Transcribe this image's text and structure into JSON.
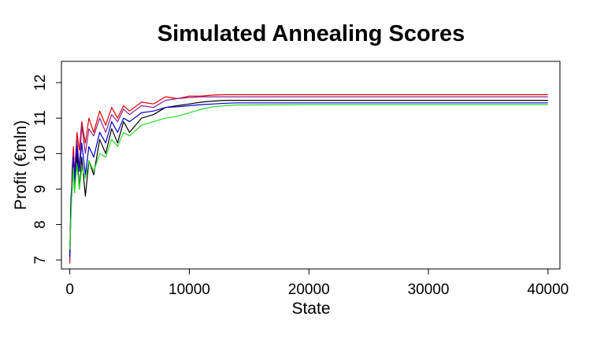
{
  "chart_data": {
    "type": "line",
    "title": "Simulated Annealing Scores",
    "xlabel": "State",
    "ylabel": "Profit (€mln)",
    "xlim": [
      -700,
      41000
    ],
    "ylim": [
      6.75,
      12.6
    ],
    "x_ticks": [
      0,
      10000,
      20000,
      30000,
      40000
    ],
    "x_tick_labels": [
      "0",
      "10000",
      "20000",
      "30000",
      "40000"
    ],
    "y_ticks": [
      7,
      8,
      9,
      10,
      11,
      12
    ],
    "y_tick_labels": [
      "7",
      "8",
      "9",
      "10",
      "11",
      "12"
    ],
    "grid": false,
    "legend": "none",
    "series": [
      {
        "color": "#e00000",
        "x": [
          0,
          100,
          200,
          300,
          400,
          600,
          800,
          1000,
          1300,
          1600,
          2000,
          2500,
          3000,
          3500,
          4000,
          4500,
          5000,
          6000,
          7000,
          8000,
          9000,
          10000,
          11000,
          12000,
          13000,
          14000,
          20000,
          30000,
          40000
        ],
        "values": [
          6.9,
          8.5,
          9.6,
          10.2,
          9.4,
          10.6,
          10.1,
          10.9,
          10.3,
          11.0,
          10.6,
          11.2,
          10.8,
          11.3,
          11.0,
          11.35,
          11.2,
          11.45,
          11.4,
          11.6,
          11.55,
          11.62,
          11.62,
          11.65,
          11.66,
          11.66,
          11.66,
          11.66,
          11.66
        ]
      },
      {
        "color": "#8a1f8a",
        "x": [
          0,
          100,
          200,
          300,
          400,
          600,
          800,
          1000,
          1300,
          1600,
          2000,
          2500,
          3000,
          3500,
          4000,
          4500,
          5000,
          6000,
          7000,
          8000,
          9000,
          10000,
          11000,
          12000,
          13000,
          14000,
          20000,
          30000,
          40000
        ],
        "values": [
          7.0,
          8.8,
          9.2,
          10.0,
          9.5,
          10.4,
          9.6,
          10.8,
          10.0,
          10.7,
          10.5,
          11.0,
          10.6,
          11.1,
          10.9,
          11.25,
          11.1,
          11.35,
          11.3,
          11.5,
          11.55,
          11.58,
          11.6,
          11.6,
          11.6,
          11.6,
          11.6,
          11.6,
          11.6
        ]
      },
      {
        "color": "#000000",
        "x": [
          0,
          100,
          200,
          300,
          400,
          600,
          800,
          1000,
          1300,
          1600,
          2000,
          2500,
          3000,
          3500,
          4000,
          4500,
          5000,
          6000,
          7000,
          8000,
          9000,
          10000,
          11000,
          12000,
          13000,
          14000,
          20000,
          30000,
          40000
        ],
        "values": [
          7.2,
          8.6,
          9.0,
          9.8,
          8.9,
          10.0,
          9.0,
          9.9,
          8.8,
          9.8,
          9.4,
          10.4,
          10.0,
          10.7,
          10.3,
          10.9,
          10.6,
          11.0,
          11.1,
          11.3,
          11.35,
          11.4,
          11.45,
          11.48,
          11.5,
          11.5,
          11.5,
          11.5,
          11.5
        ]
      },
      {
        "color": "#0000cc",
        "x": [
          0,
          100,
          200,
          300,
          400,
          600,
          800,
          1000,
          1300,
          1600,
          2000,
          2500,
          3000,
          3500,
          4000,
          4500,
          5000,
          6000,
          7000,
          8000,
          9000,
          10000,
          11000,
          12000,
          13000,
          14000,
          20000,
          30000,
          40000
        ],
        "values": [
          7.1,
          8.4,
          9.3,
          9.9,
          9.2,
          10.2,
          9.5,
          10.3,
          9.4,
          10.2,
          9.9,
          10.6,
          10.3,
          10.9,
          10.6,
          11.0,
          10.9,
          11.15,
          11.2,
          11.3,
          11.32,
          11.35,
          11.38,
          11.4,
          11.42,
          11.43,
          11.43,
          11.43,
          11.43
        ]
      },
      {
        "color": "#22dd22",
        "x": [
          0,
          100,
          200,
          300,
          400,
          600,
          800,
          1000,
          1300,
          1600,
          2000,
          2500,
          3000,
          3500,
          4000,
          4500,
          5000,
          6000,
          7000,
          8000,
          9000,
          10000,
          11000,
          12000,
          13000,
          14000,
          20000,
          30000,
          40000
        ],
        "values": [
          7.3,
          8.2,
          9.1,
          9.6,
          8.9,
          9.7,
          9.0,
          9.6,
          9.3,
          9.8,
          9.5,
          10.0,
          9.9,
          10.4,
          10.2,
          10.6,
          10.5,
          10.8,
          10.9,
          11.0,
          11.05,
          11.15,
          11.25,
          11.32,
          11.35,
          11.37,
          11.38,
          11.38,
          11.38
        ]
      }
    ]
  }
}
